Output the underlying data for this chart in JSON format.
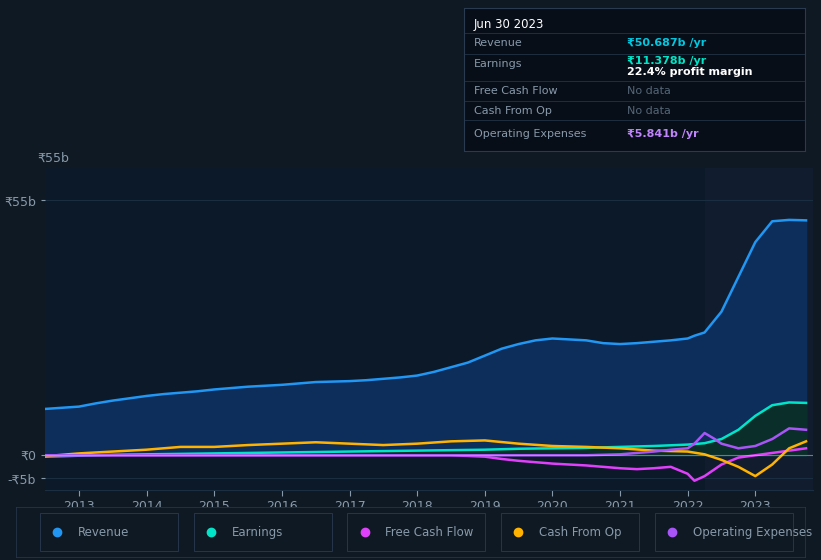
{
  "fig_bg": "#0f1923",
  "chart_bg": "#0b1929",
  "chart_bg_right": "#111d2e",
  "grid_color": "#1c2e42",
  "text_color": "#8899aa",
  "white": "#ffffff",
  "zero_line_color": "#cccccc",
  "y_label_55b": "₹55b",
  "y_label_0": "₹0",
  "y_label_neg5b": "-₹5b",
  "x_labels": [
    "2013",
    "2014",
    "2015",
    "2016",
    "2017",
    "2018",
    "2019",
    "2020",
    "2021",
    "2022",
    "2023"
  ],
  "x_ticks": [
    2013,
    2014,
    2015,
    2016,
    2017,
    2018,
    2019,
    2020,
    2021,
    2022,
    2023
  ],
  "ylim": [
    -7.5,
    62
  ],
  "xlim": [
    2012.5,
    2023.85
  ],
  "right_shade_start": 2022.25,
  "info_box": {
    "date": "Jun 30 2023",
    "revenue_label": "Revenue",
    "revenue_value": "₹50.687b /yr",
    "earnings_label": "Earnings",
    "earnings_value": "₹11.378b /yr",
    "profit_margin": "22.4% profit margin",
    "fcf_label": "Free Cash Flow",
    "fcf_value": "No data",
    "cashop_label": "Cash From Op",
    "cashop_value": "No data",
    "opex_label": "Operating Expenses",
    "opex_value": "₹5.841b /yr",
    "revenue_color": "#00c8e0",
    "earnings_color": "#00e5c8",
    "nodata_color": "#556677",
    "opex_color": "#c084fc"
  },
  "revenue": {
    "color": "#2196f3",
    "fill": "#0d2d5a",
    "x": [
      2012.5,
      2013.0,
      2013.25,
      2013.5,
      2013.75,
      2014.0,
      2014.25,
      2014.5,
      2014.75,
      2015.0,
      2015.25,
      2015.5,
      2015.75,
      2016.0,
      2016.25,
      2016.5,
      2016.75,
      2017.0,
      2017.25,
      2017.5,
      2017.75,
      2018.0,
      2018.25,
      2018.5,
      2018.75,
      2019.0,
      2019.25,
      2019.5,
      2019.75,
      2020.0,
      2020.25,
      2020.5,
      2020.75,
      2021.0,
      2021.25,
      2021.5,
      2021.75,
      2022.0,
      2022.1,
      2022.25,
      2022.5,
      2022.75,
      2023.0,
      2023.25,
      2023.5,
      2023.75
    ],
    "y": [
      10.0,
      10.5,
      11.2,
      11.8,
      12.3,
      12.8,
      13.2,
      13.5,
      13.8,
      14.2,
      14.5,
      14.8,
      15.0,
      15.2,
      15.5,
      15.8,
      15.9,
      16.0,
      16.2,
      16.5,
      16.8,
      17.2,
      18.0,
      19.0,
      20.0,
      21.5,
      23.0,
      24.0,
      24.8,
      25.2,
      25.0,
      24.8,
      24.2,
      24.0,
      24.2,
      24.5,
      24.8,
      25.2,
      25.8,
      26.5,
      31.0,
      38.5,
      46.0,
      50.5,
      50.8,
      50.7
    ]
  },
  "earnings": {
    "color": "#00e5c8",
    "fill": "#0a2e2a",
    "x": [
      2012.5,
      2013.0,
      2013.5,
      2014.0,
      2014.5,
      2015.0,
      2015.5,
      2016.0,
      2016.5,
      2017.0,
      2017.5,
      2018.0,
      2018.5,
      2019.0,
      2019.5,
      2020.0,
      2020.5,
      2021.0,
      2021.5,
      2022.0,
      2022.25,
      2022.5,
      2022.75,
      2023.0,
      2023.25,
      2023.5,
      2023.75
    ],
    "y": [
      -0.3,
      -0.1,
      0.1,
      0.2,
      0.3,
      0.4,
      0.5,
      0.6,
      0.7,
      0.8,
      0.9,
      1.0,
      1.1,
      1.2,
      1.4,
      1.5,
      1.6,
      1.8,
      2.0,
      2.3,
      2.6,
      3.5,
      5.5,
      8.5,
      10.8,
      11.4,
      11.3
    ]
  },
  "fcf": {
    "color": "#e040fb",
    "x": [
      2012.5,
      2013.0,
      2013.5,
      2014.0,
      2014.5,
      2015.0,
      2015.5,
      2016.0,
      2016.5,
      2017.0,
      2017.5,
      2018.0,
      2018.5,
      2019.0,
      2019.25,
      2019.5,
      2019.75,
      2020.0,
      2020.25,
      2020.5,
      2020.75,
      2021.0,
      2021.25,
      2021.5,
      2021.75,
      2022.0,
      2022.1,
      2022.25,
      2022.4,
      2022.5,
      2022.75,
      2023.0,
      2023.25,
      2023.5,
      2023.75
    ],
    "y": [
      0.0,
      0.0,
      0.0,
      0.0,
      0.0,
      0.0,
      0.0,
      0.0,
      0.0,
      0.0,
      0.0,
      0.0,
      0.0,
      -0.3,
      -0.8,
      -1.2,
      -1.5,
      -1.8,
      -2.0,
      -2.2,
      -2.5,
      -2.8,
      -3.0,
      -2.8,
      -2.5,
      -4.0,
      -5.5,
      -4.5,
      -3.0,
      -2.0,
      -0.5,
      0.0,
      0.5,
      1.0,
      1.5
    ]
  },
  "cashop": {
    "color": "#ffb300",
    "x": [
      2012.5,
      2013.0,
      2013.5,
      2014.0,
      2014.5,
      2015.0,
      2015.5,
      2016.0,
      2016.5,
      2017.0,
      2017.5,
      2018.0,
      2018.5,
      2019.0,
      2019.5,
      2020.0,
      2020.5,
      2021.0,
      2021.5,
      2022.0,
      2022.25,
      2022.5,
      2022.75,
      2023.0,
      2023.25,
      2023.5,
      2023.75
    ],
    "y": [
      -0.2,
      0.4,
      0.8,
      1.2,
      1.8,
      1.8,
      2.2,
      2.5,
      2.8,
      2.5,
      2.2,
      2.5,
      3.0,
      3.2,
      2.5,
      2.0,
      1.8,
      1.5,
      1.0,
      0.8,
      0.2,
      -1.0,
      -2.5,
      -4.5,
      -2.0,
      1.5,
      3.0
    ]
  },
  "opex": {
    "color": "#a855f7",
    "x": [
      2012.5,
      2013.0,
      2013.5,
      2014.0,
      2014.5,
      2015.0,
      2015.5,
      2016.0,
      2016.5,
      2017.0,
      2017.5,
      2018.0,
      2018.5,
      2019.0,
      2019.5,
      2020.0,
      2020.5,
      2021.0,
      2021.25,
      2021.5,
      2021.75,
      2022.0,
      2022.1,
      2022.25,
      2022.4,
      2022.5,
      2022.75,
      2023.0,
      2023.25,
      2023.5,
      2023.75
    ],
    "y": [
      0.0,
      0.0,
      0.0,
      0.0,
      0.0,
      0.0,
      0.0,
      0.0,
      0.0,
      0.0,
      0.0,
      0.0,
      0.0,
      0.0,
      0.0,
      0.0,
      0.0,
      0.2,
      0.5,
      0.8,
      1.2,
      1.5,
      2.5,
      4.8,
      3.5,
      2.5,
      1.5,
      2.0,
      3.5,
      5.8,
      5.5
    ]
  },
  "legend": [
    {
      "label": "Revenue",
      "color": "#2196f3"
    },
    {
      "label": "Earnings",
      "color": "#00e5c8"
    },
    {
      "label": "Free Cash Flow",
      "color": "#e040fb"
    },
    {
      "label": "Cash From Op",
      "color": "#ffb300"
    },
    {
      "label": "Operating Expenses",
      "color": "#a855f7"
    }
  ]
}
